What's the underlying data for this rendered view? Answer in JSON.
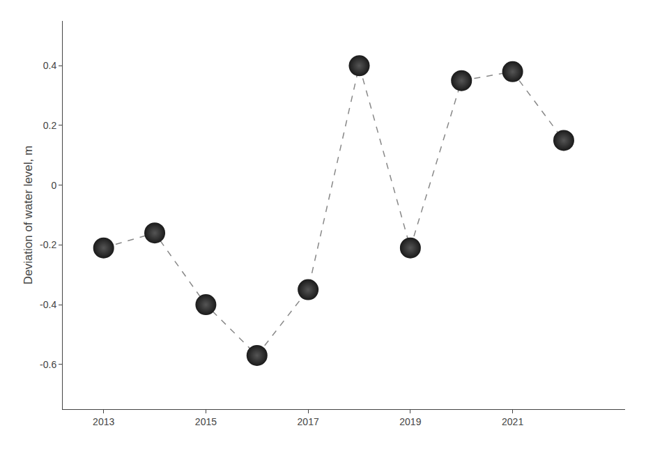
{
  "chart_data": {
    "type": "line",
    "ylabel": "Deviation of water level, m",
    "x": [
      2013,
      2014,
      2015,
      2016,
      2017,
      2018,
      2019,
      2020,
      2021,
      2022
    ],
    "values": [
      -0.21,
      -0.16,
      -0.4,
      -0.57,
      -0.35,
      0.4,
      -0.21,
      0.35,
      0.38,
      0.15
    ],
    "xlim": [
      2012.2,
      2023.2
    ],
    "ylim": [
      -0.75,
      0.55
    ],
    "xticks": [
      2013,
      2015,
      2017,
      2019,
      2021
    ],
    "yticks": [
      -0.6,
      -0.4,
      -0.2,
      0,
      0.2,
      0.4
    ],
    "color": "#888888",
    "line_style": "dashed",
    "marker": "circle",
    "grid": false
  }
}
